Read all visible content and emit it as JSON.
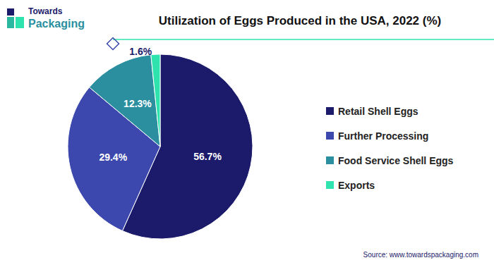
{
  "chart_data": {
    "type": "pie",
    "title": "Utilization of Eggs Produced in the USA, 2022 (%)",
    "categories": [
      "Retail Shell Eggs",
      "Further Processing",
      "Food Service Shell Eggs",
      "Exports"
    ],
    "values": [
      56.7,
      29.4,
      12.3,
      1.6
    ],
    "value_labels": [
      "56.7%",
      "29.4%",
      "12.3%",
      "1.6%"
    ],
    "colors": [
      "#1b1a6b",
      "#3c48ad",
      "#2b8fa0",
      "#2fe3ae"
    ],
    "data_labels": true,
    "legend": "right",
    "logo": [
      "Towards",
      "Packaging"
    ],
    "source": "Source: www.towardspackaging.com"
  }
}
